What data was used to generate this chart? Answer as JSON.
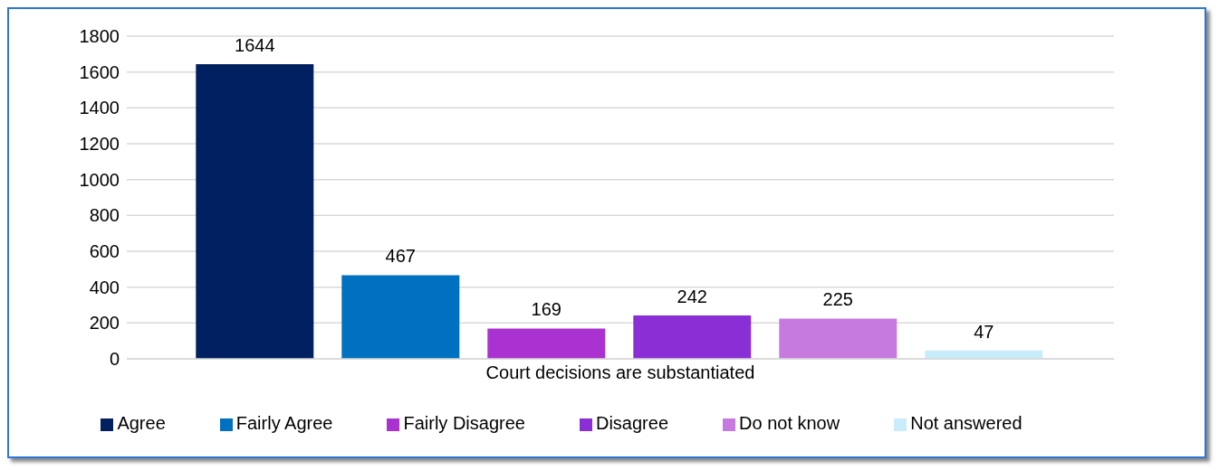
{
  "chart_data": {
    "type": "bar",
    "categories": [
      "Court decisions are substantiated"
    ],
    "series": [
      {
        "name": "Agree",
        "color": "#002060",
        "values": [
          1644
        ]
      },
      {
        "name": "Fairly Agree",
        "color": "#0070c0",
        "values": [
          467
        ]
      },
      {
        "name": "Fairly Disagree",
        "color": "#a932d0",
        "values": [
          169
        ]
      },
      {
        "name": "Disagree",
        "color": "#8a2ed6",
        "values": [
          242
        ]
      },
      {
        "name": "Do not know",
        "color": "#c67ae0",
        "values": [
          225
        ]
      },
      {
        "name": "Not answered",
        "color": "#c8ecfa",
        "values": [
          47
        ]
      }
    ],
    "ylim": [
      0,
      1800
    ],
    "yticks": [
      0,
      200,
      400,
      600,
      800,
      1000,
      1200,
      1400,
      1600,
      1800
    ],
    "grid": "y",
    "legend": "bottom",
    "data_labels": true
  }
}
